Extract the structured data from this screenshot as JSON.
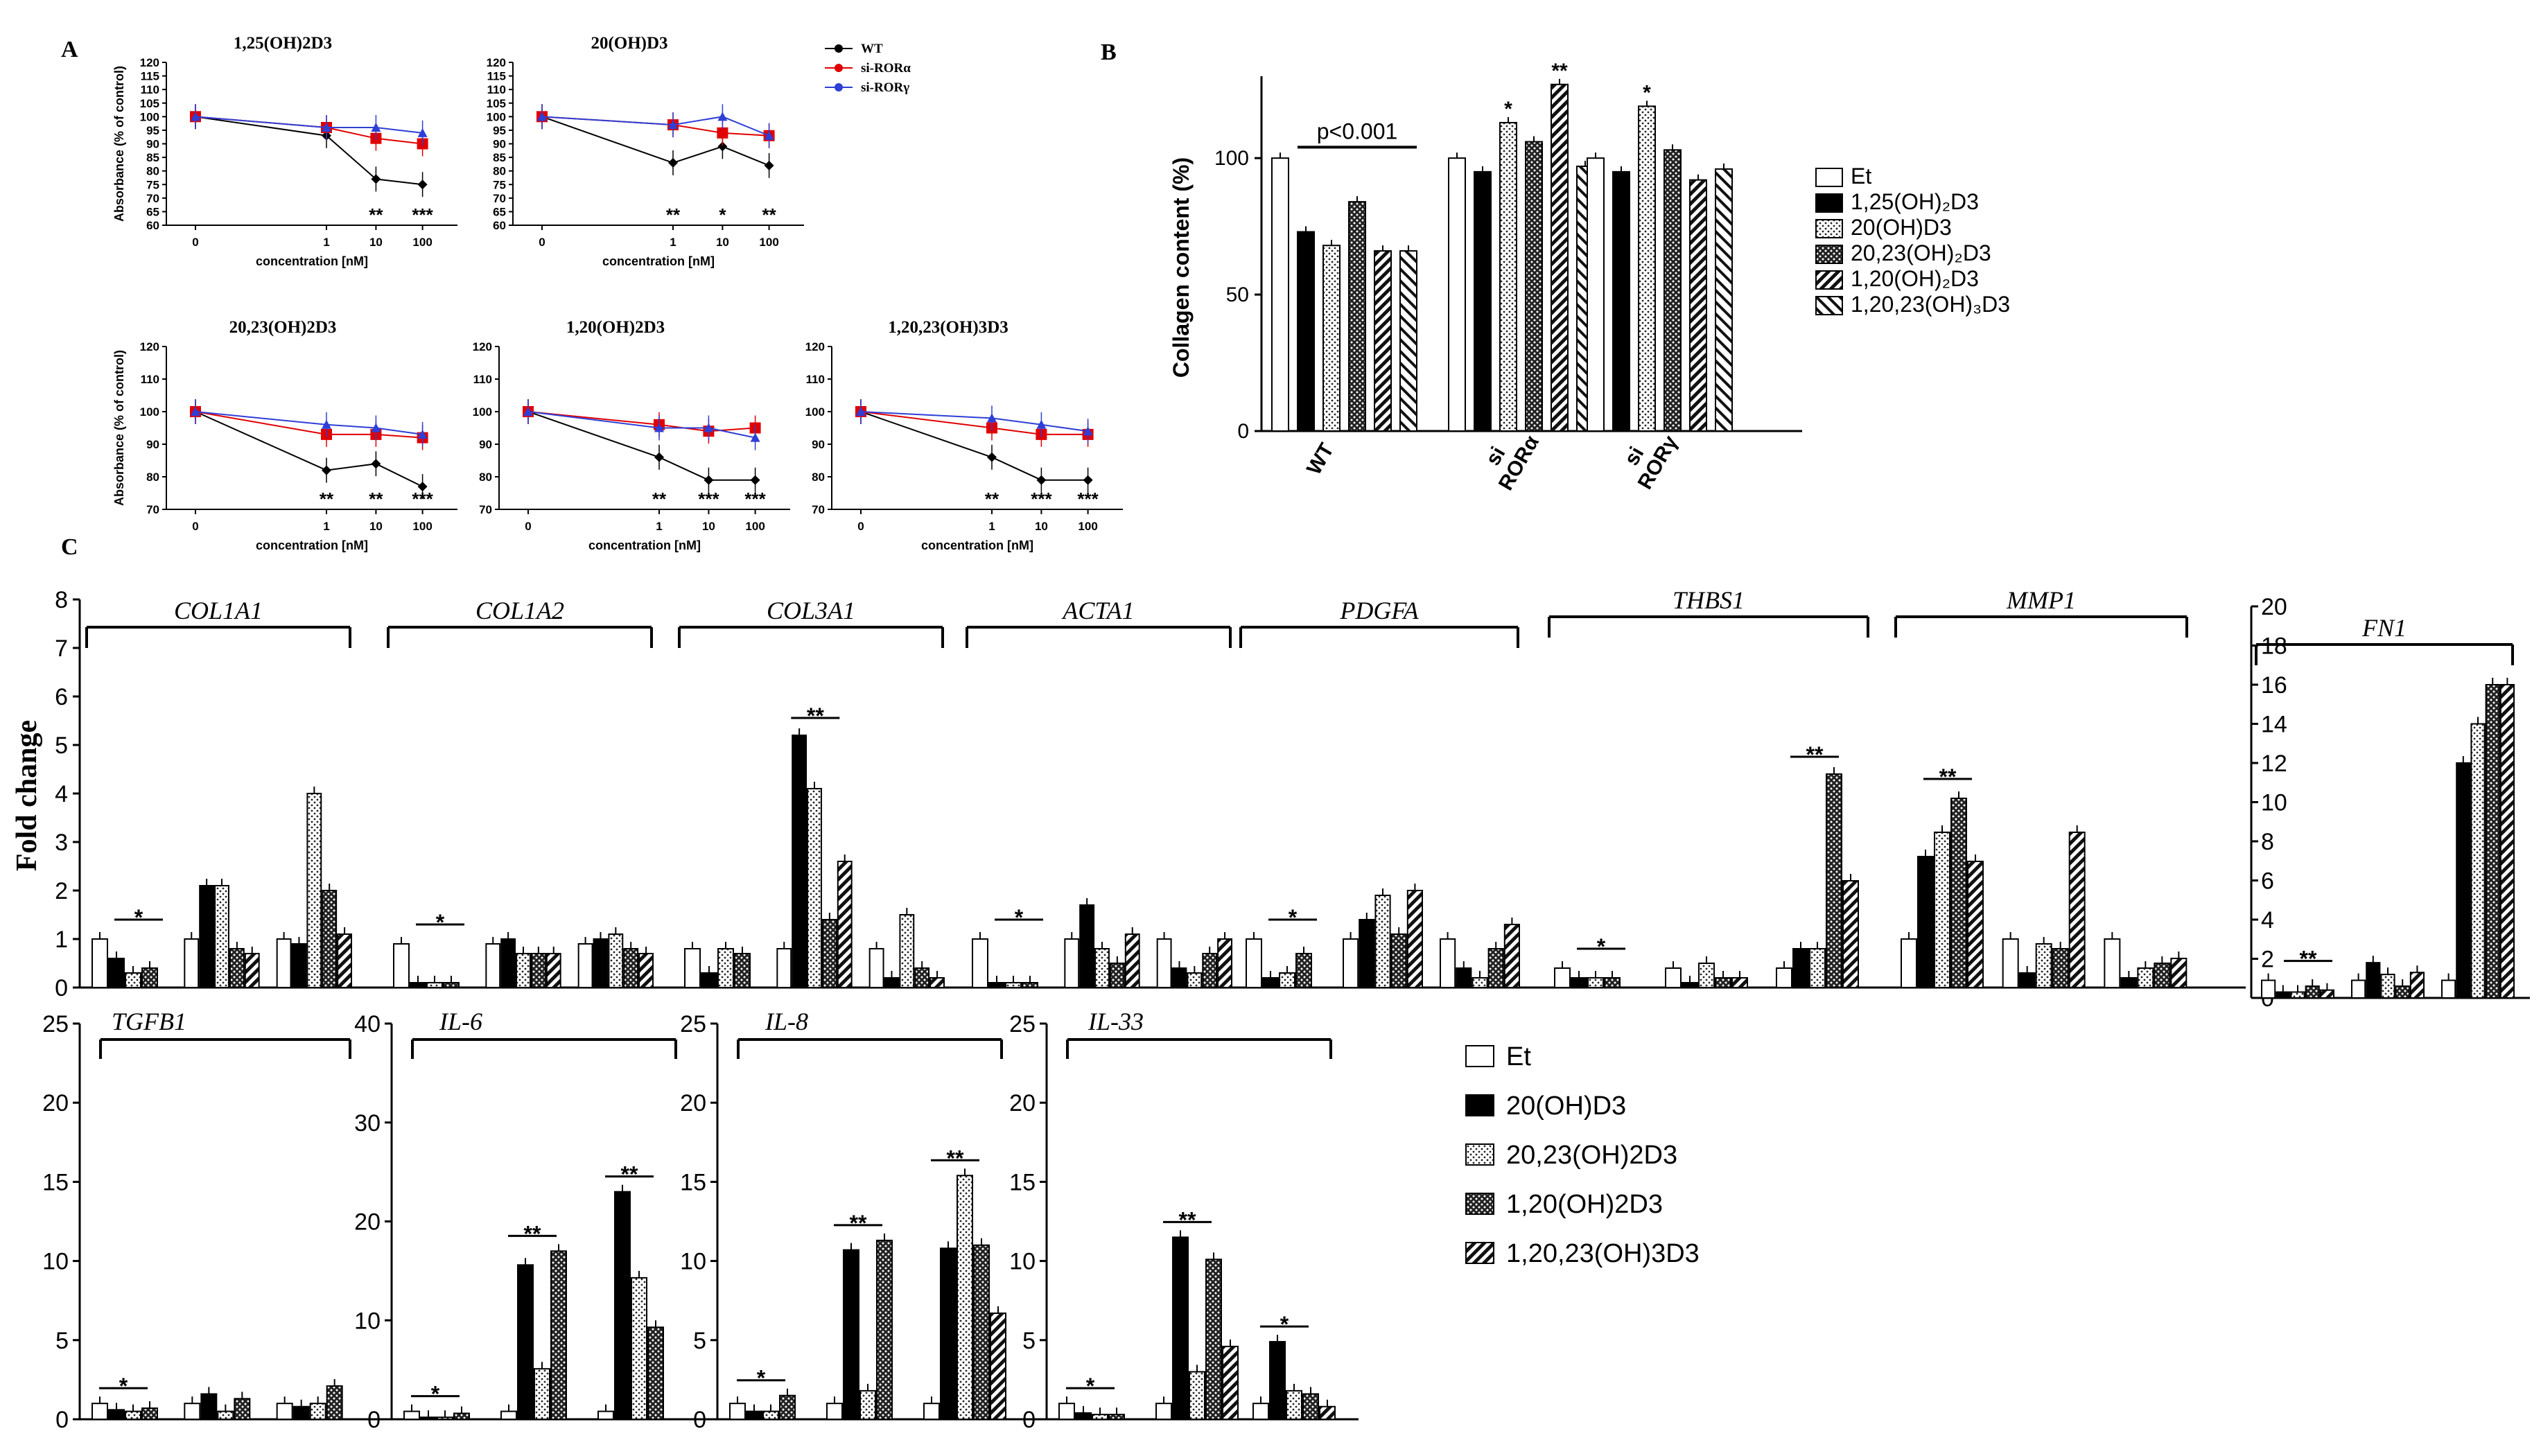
{
  "panel_labels": {
    "A": "A",
    "B": "B",
    "C": "C"
  },
  "colors": {
    "wt": "#000000",
    "rora": "#e00000",
    "rorg": "#2e3fd6"
  },
  "chart_data": [
    {
      "id": "A",
      "type": "line",
      "legend": [
        "WT",
        "si-RORα",
        "si-RORγ"
      ],
      "ylabel": "Absorbance (% of control)",
      "xlabel": "concentration [nM]",
      "xtick_labels": [
        "0",
        "1",
        "10",
        "100"
      ],
      "subplots": [
        {
          "title": "1,25(OH)2D3",
          "ylim": [
            60,
            120
          ],
          "yticks": [
            "60",
            "65",
            "70",
            "75",
            "80",
            "85",
            "90",
            "95",
            "100",
            "105",
            "110",
            "115",
            "120"
          ],
          "show_ylabel": true,
          "series": [
            {
              "name": "WT",
              "values": [
                100,
                93,
                77,
                75
              ]
            },
            {
              "name": "si-RORα",
              "values": [
                100,
                96,
                92,
                90
              ]
            },
            {
              "name": "si-RORγ",
              "values": [
                100,
                96,
                96,
                94
              ]
            }
          ],
          "stars": [
            "",
            "",
            "**",
            "***"
          ]
        },
        {
          "title": "20(OH)D3",
          "ylim": [
            60,
            120
          ],
          "yticks": [
            "60",
            "65",
            "70",
            "75",
            "80",
            "85",
            "90",
            "95",
            "100",
            "105",
            "110",
            "115",
            "120"
          ],
          "show_ylabel": false,
          "series": [
            {
              "name": "WT",
              "values": [
                100,
                83,
                89,
                82
              ]
            },
            {
              "name": "si-RORα",
              "values": [
                100,
                97,
                94,
                93
              ]
            },
            {
              "name": "si-RORγ",
              "values": [
                100,
                97,
                100,
                93
              ]
            }
          ],
          "stars": [
            "",
            "**",
            "*",
            "**"
          ]
        },
        {
          "title": "20,23(OH)2D3",
          "ylim": [
            70,
            120
          ],
          "yticks": [
            "70",
            "80",
            "90",
            "100",
            "110",
            "120"
          ],
          "show_ylabel": true,
          "series": [
            {
              "name": "WT",
              "values": [
                100,
                82,
                84,
                77
              ]
            },
            {
              "name": "si-RORα",
              "values": [
                100,
                93,
                93,
                92
              ]
            },
            {
              "name": "si-RORγ",
              "values": [
                100,
                96,
                95,
                93
              ]
            }
          ],
          "stars": [
            "",
            "**",
            "**",
            "***"
          ]
        },
        {
          "title": "1,20(OH)2D3",
          "ylim": [
            70,
            120
          ],
          "yticks": [
            "70",
            "80",
            "90",
            "100",
            "110",
            "120"
          ],
          "show_ylabel": false,
          "series": [
            {
              "name": "WT",
              "values": [
                100,
                86,
                79,
                79
              ]
            },
            {
              "name": "si-RORα",
              "values": [
                100,
                96,
                94,
                95
              ]
            },
            {
              "name": "si-RORγ",
              "values": [
                100,
                95,
                95,
                92
              ]
            }
          ],
          "stars": [
            "",
            "**",
            "***",
            "***"
          ]
        },
        {
          "title": "1,20,23(OH)3D3",
          "ylim": [
            70,
            120
          ],
          "yticks": [
            "70",
            "80",
            "90",
            "100",
            "110",
            "120"
          ],
          "show_ylabel": false,
          "series": [
            {
              "name": "WT",
              "values": [
                100,
                86,
                79,
                79
              ]
            },
            {
              "name": "si-RORα",
              "values": [
                100,
                95,
                93,
                93
              ]
            },
            {
              "name": "si-RORγ",
              "values": [
                100,
                98,
                96,
                94
              ]
            }
          ],
          "stars": [
            "",
            "**",
            "***",
            "***"
          ]
        }
      ]
    },
    {
      "id": "B",
      "type": "bar",
      "ylabel": "Collagen content (%)",
      "ylim": [
        0,
        130
      ],
      "yticks": [
        "0",
        "50",
        "100"
      ],
      "groups": [
        {
          "label": "WT",
          "values": [
            100,
            73,
            68,
            84,
            66,
            66
          ],
          "stars": [
            "",
            "",
            "",
            "",
            "",
            ""
          ]
        },
        {
          "label": "si RORα",
          "values": [
            100,
            95,
            113,
            106,
            127,
            97
          ],
          "stars": [
            "",
            "",
            "*",
            "",
            "**",
            ""
          ]
        },
        {
          "label": "si RORγ",
          "values": [
            100,
            95,
            119,
            103,
            92,
            96
          ],
          "stars": [
            "",
            "",
            "*",
            "",
            "",
            ""
          ]
        }
      ],
      "bracket_label": "p<0.001",
      "legend": [
        "Et",
        "1,25(OH)₂D3",
        "20(OH)D3",
        "20,23(OH)₂D3",
        "1,20(OH)₂D3",
        "1,20,23(OH)₃D3"
      ]
    },
    {
      "id": "C",
      "type": "bar",
      "ylabel": "Fold change",
      "legend": [
        "Et",
        "20(OH)D3",
        "20,23(OH)2D3",
        "1,20(OH)2D3",
        "1,20,23(OH)3D3"
      ],
      "left_axis_ticks": [
        "0",
        "1",
        "2",
        "3",
        "4",
        "5",
        "6",
        "7",
        "8"
      ],
      "right_axis_ticks": [
        "0",
        "2",
        "4",
        "6",
        "8",
        "10",
        "12",
        "14",
        "16",
        "18",
        "20"
      ],
      "genes_row1": [
        {
          "gene": "COL1A1",
          "ymax": 8,
          "values": [
            [
              1,
              0.6,
              0.3,
              0.4
            ],
            [
              1,
              2.1,
              2.1,
              0.8,
              0.7
            ],
            [
              1,
              0.9,
              4,
              2,
              1.1
            ]
          ],
          "star": "*",
          "star2": ""
        },
        {
          "gene": "COL1A2",
          "ymax": 8,
          "values": [
            [
              0.9,
              0.1,
              0.1,
              0.1
            ],
            [
              0.9,
              1,
              0.7,
              0.7,
              0.7
            ],
            [
              0.9,
              1,
              1.1,
              0.8,
              0.7
            ]
          ],
          "star": "*",
          "star2": ""
        },
        {
          "gene": "COL3A1",
          "ymax": 8,
          "values": [
            [
              0.8,
              0.3,
              0.8,
              0.7
            ],
            [
              0.8,
              5.2,
              4.1,
              1.4,
              2.6
            ],
            [
              0.8,
              0.2,
              1.5,
              0.4,
              0.2
            ]
          ],
          "star": "",
          "star2": "**"
        },
        {
          "gene": "ACTA1",
          "ymax": 8,
          "values": [
            [
              1,
              0.1,
              0.1,
              0.1
            ],
            [
              1,
              1.7,
              0.8,
              0.5,
              1.1
            ],
            [
              1,
              0.4,
              0.3,
              0.7,
              1
            ]
          ],
          "star": "*",
          "star2": ""
        },
        {
          "gene": "PDGFA",
          "ymax": 8,
          "values": [
            [
              1,
              0.2,
              0.3,
              0.7
            ],
            [
              1,
              1.4,
              1.9,
              1.1,
              2
            ],
            [
              1,
              0.4,
              0.2,
              0.8,
              1.3
            ]
          ],
          "star": "*",
          "star2": ""
        },
        {
          "gene": "THBS1",
          "ymax": 8,
          "values": [
            [
              0.4,
              0.2,
              0.2,
              0.2
            ],
            [
              0.4,
              0.1,
              0.5,
              0.2,
              0.2
            ],
            [
              0.4,
              0.8,
              0.8,
              4.4,
              2.2
            ]
          ],
          "star": "*",
          "star2": "**"
        },
        {
          "gene": "MMP1",
          "ymax": 8,
          "values": [
            [
              1,
              2.7,
              3.2,
              3.9,
              2.6
            ],
            [
              1,
              0.3,
              0.9,
              0.8,
              3.2
            ],
            [
              1,
              0.2,
              0.4,
              0.5,
              0.6
            ]
          ],
          "star": "**",
          "star2": ""
        },
        {
          "gene": "FN1",
          "ymax": 20,
          "values": [
            [
              0.9,
              0.3,
              0.3,
              0.6,
              0.4
            ],
            [
              0.9,
              1.8,
              1.2,
              0.6,
              1.3
            ],
            [
              0.9,
              12,
              14,
              16,
              16
            ]
          ],
          "star": "**",
          "star2": ""
        }
      ],
      "genes_row2": [
        {
          "gene": "TGFB1",
          "ymax": 25,
          "yticks": [
            "0",
            "5",
            "10",
            "15",
            "20",
            "25"
          ],
          "values": [
            [
              1,
              0.6,
              0.5,
              0.7
            ],
            [
              1,
              1.6,
              0.5,
              1.3
            ],
            [
              1,
              0.8,
              1,
              2.1
            ]
          ],
          "star": "*",
          "star2": ""
        },
        {
          "gene": "IL-6",
          "ymax": 40,
          "yticks": [
            "0",
            "10",
            "20",
            "30",
            "40"
          ],
          "values": [
            [
              0.8,
              0.2,
              0.2,
              0.6
            ],
            [
              0.8,
              15.6,
              5.1,
              17
            ],
            [
              0.8,
              23,
              14.3,
              9.3
            ]
          ],
          "star": "*",
          "star2": "**",
          "star3": "**"
        },
        {
          "gene": "IL-8",
          "ymax": 25,
          "yticks": [
            "0",
            "5",
            "10",
            "15",
            "20",
            "25"
          ],
          "values": [
            [
              1,
              0.5,
              0.5,
              1.5
            ],
            [
              1,
              10.7,
              1.8,
              11.3
            ],
            [
              1,
              10.8,
              15.4,
              11,
              6.7
            ]
          ],
          "star": "*",
          "star2": "**",
          "star3": "**"
        },
        {
          "gene": "IL-33",
          "ymax": 25,
          "yticks": [
            "0",
            "5",
            "10",
            "15",
            "20",
            "25"
          ],
          "values": [
            [
              1,
              0.4,
              0.3,
              0.3
            ],
            [
              1,
              11.5,
              3,
              10.1,
              4.6
            ],
            [
              1,
              4.9,
              1.8,
              1.6,
              0.8
            ]
          ],
          "star": "*",
          "star2": "**",
          "star3": "*"
        }
      ]
    }
  ]
}
